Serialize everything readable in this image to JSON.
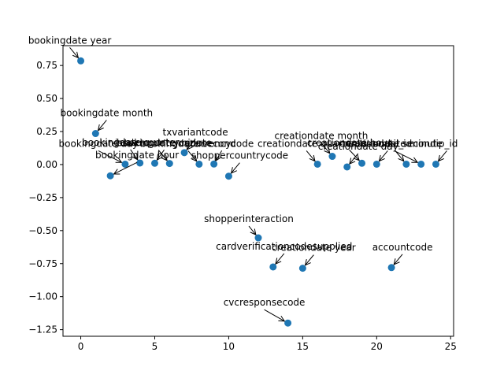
{
  "chart_data": {
    "type": "scatter",
    "title": "",
    "xlabel": "",
    "ylabel": "",
    "xlim": [
      -1.2,
      25.2
    ],
    "ylim": [
      -1.3,
      0.9
    ],
    "xticks": [
      0,
      5,
      10,
      15,
      20,
      25
    ],
    "yticks": [
      -1.25,
      -1.0,
      -0.75,
      -0.5,
      -0.25,
      0.0,
      0.25,
      0.5,
      0.75
    ],
    "ytick_labels": [
      "−1.25",
      "−1.00",
      "−0.75",
      "−0.50",
      "−0.25",
      "0.00",
      "0.25",
      "0.50",
      "0.75"
    ],
    "grid": false,
    "marker_color": "#1f77b4",
    "points": [
      {
        "x": 0,
        "y": 0.785,
        "label": "bookingdate year"
      },
      {
        "x": 1,
        "y": 0.235,
        "label": "bookingdate month"
      },
      {
        "x": 2,
        "y": -0.085,
        "label": "bookingdate hour"
      },
      {
        "x": 3,
        "y": 0.003,
        "label": "bookingdate day"
      },
      {
        "x": 4,
        "y": 0.012,
        "label": "bookingdate quarter"
      },
      {
        "x": 5,
        "y": 0.01,
        "label": "bookingdate minute"
      },
      {
        "x": 6,
        "y": 0.008,
        "label": "issuercountrycode"
      },
      {
        "x": 7,
        "y": 0.09,
        "label": "txvariantcode"
      },
      {
        "x": 8,
        "y": 0.003,
        "label": "bookingdate second"
      },
      {
        "x": 9,
        "y": 0.004,
        "label": "currencycode"
      },
      {
        "x": 10,
        "y": -0.088,
        "label": "shoppercountrycode"
      },
      {
        "x": 12,
        "y": -0.555,
        "label": "shopperinteraction"
      },
      {
        "x": 13,
        "y": -0.775,
        "label": "cardverificationcodesupplied"
      },
      {
        "x": 14,
        "y": -1.2,
        "label": "cvcresponsecode"
      },
      {
        "x": 15,
        "y": -0.785,
        "label": "creationdate year"
      },
      {
        "x": 16,
        "y": 0.003,
        "label": "creationdate quarter"
      },
      {
        "x": 17,
        "y": 0.062,
        "label": "creationdate month"
      },
      {
        "x": 18,
        "y": -0.018,
        "label": "creationdate day"
      },
      {
        "x": 19,
        "y": 0.01,
        "label": "creationdate hour"
      },
      {
        "x": 20,
        "y": 0.003,
        "label": "creationdate second"
      },
      {
        "x": 21,
        "y": -0.78,
        "label": "accountcode"
      },
      {
        "x": 22,
        "y": 0.003,
        "label": "mail_id"
      },
      {
        "x": 23,
        "y": 0.003,
        "label": "creationdate minute"
      },
      {
        "x": 24,
        "y": 0.003,
        "label": "ip_id"
      }
    ]
  }
}
